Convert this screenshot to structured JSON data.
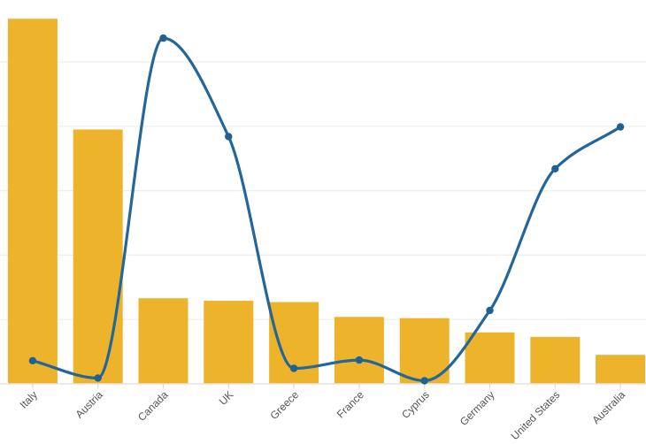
{
  "chart_data": {
    "type": "combo",
    "categories": [
      "Italy",
      "Austria",
      "Canada",
      "UK",
      "Greece",
      "France",
      "Cyprus",
      "Germany",
      "United States",
      "Australia"
    ],
    "series": [
      {
        "name": "bar-series",
        "type": "bar",
        "color": "#ECB32B",
        "values": [
          56.7,
          39.5,
          13.3,
          12.9,
          12.7,
          10.4,
          10.2,
          8.0,
          7.3,
          4.5
        ]
      },
      {
        "name": "line-series",
        "type": "line",
        "color": "#23679A",
        "marker_color": "#1F6191",
        "values": [
          3.6,
          0.9,
          53.7,
          38.4,
          2.4,
          3.7,
          0.5,
          11.4,
          33.4,
          39.9
        ]
      }
    ],
    "ylim": [
      0,
      60
    ],
    "grid": {
      "show": true,
      "step": 10,
      "color": "#EDEDED"
    },
    "legend": {
      "show": false
    },
    "axis": {
      "baseline_color": "#E3E3E3",
      "tick_color": "#D9D9D9",
      "label_color": "#555555",
      "label_rotation": -45
    }
  }
}
